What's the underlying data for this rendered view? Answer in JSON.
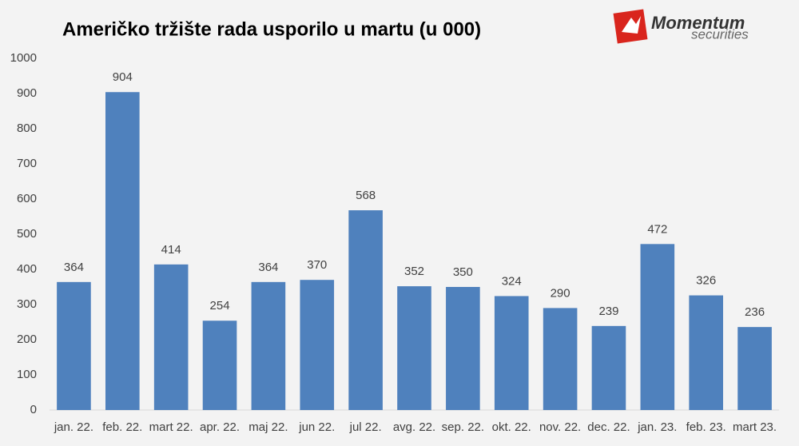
{
  "chart_data": {
    "type": "bar",
    "title": "Američko tržište rada usporilo u martu (u 000)",
    "categories": [
      "jan. 22.",
      "feb. 22.",
      "mart 22.",
      "apr. 22.",
      "maj 22.",
      "jun 22.",
      "jul 22.",
      "avg. 22.",
      "sep. 22.",
      "okt. 22.",
      "nov. 22.",
      "dec. 22.",
      "jan. 23.",
      "feb. 23.",
      "mart 23."
    ],
    "values": [
      364,
      904,
      414,
      254,
      364,
      370,
      568,
      352,
      350,
      324,
      290,
      239,
      472,
      326,
      236
    ],
    "color": "#4f81bd",
    "ylim": [
      0,
      1000
    ],
    "yticks": [
      0,
      100,
      200,
      300,
      400,
      500,
      600,
      700,
      800,
      900,
      1000
    ],
    "grid": false
  },
  "logo": {
    "name": "Momentum",
    "tagline": "securities"
  }
}
